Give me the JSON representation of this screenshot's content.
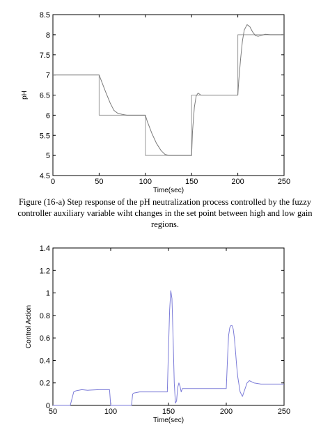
{
  "caption": "Figure (16-a) Step response of the pH neutralization process controlled by the fuzzy controller  auxiliary variable wiht changes in the set point between high and low gain regions.",
  "chart_data": [
    {
      "type": "line",
      "xlabel": "Time(sec)",
      "ylabel": "pH",
      "xlim": [
        0,
        250
      ],
      "ylim": [
        4.5,
        8.5
      ],
      "xticks": [
        "0",
        "50",
        "100",
        "150",
        "200",
        "250"
      ],
      "yticks": [
        "4.5",
        "5",
        "5.5",
        "6",
        "6.5",
        "7",
        "7.5",
        "8",
        "8.5"
      ],
      "grid": false,
      "legend": "none",
      "series": [
        {
          "color": "#9a9a9a",
          "x": [
            0,
            50,
            50,
            100,
            100,
            150,
            150,
            200,
            200,
            250
          ],
          "y": [
            7,
            7,
            6,
            6,
            5,
            5,
            6.5,
            6.5,
            8,
            8
          ]
        },
        {
          "color": "#7a7a7a",
          "x": [
            0,
            50,
            53,
            57,
            62,
            66,
            70,
            75,
            80,
            100,
            102,
            107,
            112,
            117,
            121,
            125,
            130,
            150,
            151,
            153,
            155,
            157,
            160,
            200,
            201,
            203,
            205,
            207,
            210,
            213,
            216,
            219,
            222,
            226,
            230,
            235,
            250
          ],
          "y": [
            7,
            7,
            6.82,
            6.58,
            6.3,
            6.12,
            6.05,
            6.02,
            6,
            6,
            5.85,
            5.55,
            5.3,
            5.12,
            5.03,
            5,
            5,
            5,
            5.6,
            6.2,
            6.48,
            6.55,
            6.5,
            6.5,
            6.85,
            7.4,
            7.85,
            8.12,
            8.25,
            8.2,
            8.07,
            7.98,
            7.96,
            7.99,
            8.01,
            8,
            8
          ]
        }
      ]
    },
    {
      "type": "line",
      "xlabel": "Time(sec)",
      "ylabel": "Control Action",
      "xlim": [
        50,
        250
      ],
      "ylim": [
        0,
        1.4
      ],
      "xticks": [
        "50",
        "100",
        "150",
        "200",
        "250"
      ],
      "yticks": [
        "0",
        "0.2",
        "0.4",
        "0.6",
        "0.8",
        "1",
        "1.2",
        "1.4"
      ],
      "grid": false,
      "legend": "none",
      "series": [
        {
          "color": "#7b7bd8",
          "x": [
            50,
            65,
            67,
            68,
            70,
            75,
            80,
            90,
            99,
            100,
            101,
            118,
            119,
            120,
            125,
            140,
            149,
            150,
            151,
            152,
            153,
            154,
            155,
            156,
            157,
            158,
            159,
            160,
            161,
            162,
            165,
            170,
            180,
            190,
            200,
            201,
            202,
            203,
            204,
            205,
            206,
            207,
            208,
            209,
            210,
            212,
            214,
            216,
            218,
            220,
            224,
            230,
            240,
            250
          ],
          "y": [
            0,
            0,
            0.08,
            0.12,
            0.13,
            0.14,
            0.135,
            0.14,
            0.14,
            0,
            0,
            0,
            0.1,
            0.11,
            0.12,
            0.12,
            0.12,
            0.5,
            0.85,
            1.02,
            0.95,
            0.6,
            0.2,
            0.02,
            0.04,
            0.16,
            0.2,
            0.17,
            0.12,
            0.15,
            0.15,
            0.15,
            0.15,
            0.15,
            0.15,
            0.4,
            0.62,
            0.69,
            0.71,
            0.71,
            0.68,
            0.6,
            0.48,
            0.35,
            0.25,
            0.12,
            0.08,
            0.14,
            0.2,
            0.22,
            0.2,
            0.19,
            0.19,
            0.19
          ]
        }
      ]
    }
  ]
}
